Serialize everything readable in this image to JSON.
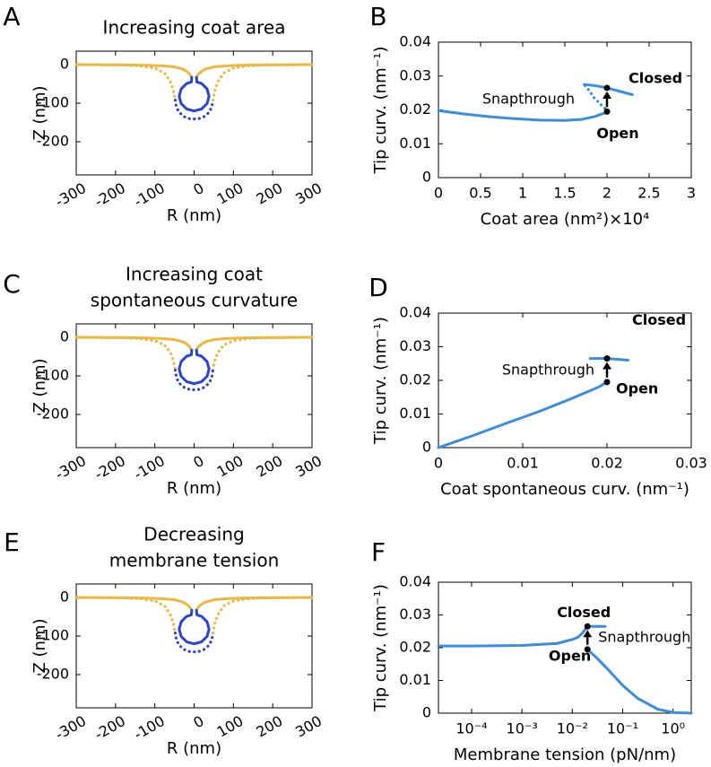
{
  "chart_data": [
    {
      "type": "shape",
      "panel": "A",
      "title": [
        "Increasing coat area"
      ],
      "xlabel": "R (nm)",
      "ylabel": "Z (nm)",
      "xlim": [
        -300,
        300
      ],
      "ylim": [
        -286,
        35
      ],
      "xticks": [
        -300,
        -200,
        -100,
        0,
        100,
        200,
        300
      ],
      "yticks": [
        0,
        -100,
        -200
      ],
      "series": [
        {
          "color": "#edb83d",
          "style": "dotted",
          "x": [
            -300,
            -200,
            -140,
            -100,
            -75,
            -60,
            -52,
            -48,
            null,
            48,
            52,
            60,
            75,
            100,
            140,
            200,
            300
          ],
          "values": [
            0,
            -1,
            -3,
            -9,
            -22,
            -45,
            -70,
            -92,
            null,
            -92,
            -70,
            -45,
            -22,
            -9,
            -3,
            -1,
            0
          ]
        },
        {
          "color": "#2b45d0",
          "style": "dotted",
          "x": [
            -48,
            -45,
            -38,
            -25,
            -12,
            0,
            12,
            25,
            38,
            45,
            48
          ],
          "values": [
            -92,
            -110,
            -124,
            -135,
            -140,
            -141,
            -140,
            -135,
            -124,
            -110,
            -92
          ]
        },
        {
          "color": "#edb83d",
          "style": "solid",
          "x": [
            -300,
            -200,
            -120,
            -80,
            -50,
            -30,
            -18,
            -10,
            -6,
            null,
            6,
            10,
            18,
            30,
            50,
            80,
            120,
            200,
            300
          ],
          "values": [
            0,
            -0.5,
            -1.5,
            -3,
            -6,
            -11,
            -18,
            -26,
            -33,
            null,
            -33,
            -26,
            -18,
            -11,
            -6,
            -3,
            -1.5,
            -0.5,
            0
          ]
        },
        {
          "color": "#2b45d0",
          "style": "solid",
          "x": [
            -6,
            -7,
            -19,
            -33,
            -38,
            -33,
            -19,
            0,
            19,
            33,
            38,
            33,
            19,
            7,
            6
          ],
          "values": [
            -33,
            -45,
            -49,
            -63,
            -82,
            -101,
            -115,
            -120,
            -115,
            -101,
            -82,
            -63,
            -49,
            -45,
            -33
          ]
        }
      ]
    },
    {
      "type": "line",
      "panel": "B",
      "xlabel": "Coat area (nm²)×10⁴",
      "ylabel": "Tip curv. (nm⁻¹)",
      "xlim": [
        0,
        3
      ],
      "ylim": [
        0,
        0.04
      ],
      "xticks": [
        0,
        0.5,
        1,
        1.5,
        2,
        2.5,
        3
      ],
      "yticks": [
        0,
        0.01,
        0.02,
        0.03,
        0.04
      ],
      "series": [
        {
          "color": "#3a8ee0",
          "style": "solid",
          "x": [
            0,
            0.3,
            0.6,
            0.9,
            1.2,
            1.5,
            1.7,
            1.85,
            2.02
          ],
          "values": [
            0.0198,
            0.0188,
            0.018,
            0.0174,
            0.017,
            0.0169,
            0.0172,
            0.018,
            0.0195
          ]
        },
        {
          "color": "#3a8ee0",
          "style": "dotted",
          "x": [
            2.02,
            1.95,
            1.85,
            1.78,
            1.73
          ],
          "values": [
            0.0195,
            0.021,
            0.0235,
            0.026,
            0.0275
          ]
        },
        {
          "color": "#3a8ee0",
          "style": "solid",
          "x": [
            1.73,
            1.85,
            2,
            2.15,
            2.3
          ],
          "values": [
            0.0275,
            0.0272,
            0.0265,
            0.0255,
            0.0245
          ]
        }
      ],
      "points": {
        "x": [
          2,
          2
        ],
        "values": [
          0.0265,
          0.0195
        ],
        "labels": [
          "Closed",
          "Open"
        ]
      },
      "annotation": "Snapthrough"
    },
    {
      "type": "shape",
      "panel": "C",
      "title": [
        "Increasing coat",
        "spontaneous curvature"
      ],
      "xlabel": "R (nm)",
      "ylabel": "Z (nm)",
      "xlim": [
        -300,
        300
      ],
      "ylim": [
        -286,
        35
      ],
      "xticks": [
        -300,
        -200,
        -100,
        0,
        100,
        200,
        300
      ],
      "yticks": [
        0,
        -100,
        -200
      ],
      "series": [
        {
          "color": "#edb83d",
          "style": "dotted",
          "x": [
            -300,
            -200,
            -140,
            -100,
            -75,
            -60,
            -52,
            -48,
            null,
            48,
            52,
            60,
            75,
            100,
            140,
            200,
            300
          ],
          "values": [
            0,
            -1,
            -3,
            -9,
            -20,
            -40,
            -62,
            -85,
            null,
            -85,
            -62,
            -40,
            -20,
            -9,
            -3,
            -1,
            0
          ]
        },
        {
          "color": "#2b45d0",
          "style": "dotted",
          "x": [
            -48,
            -45,
            -38,
            -25,
            -12,
            0,
            12,
            25,
            38,
            45,
            48
          ],
          "values": [
            -85,
            -104,
            -119,
            -130,
            -135,
            -136,
            -135,
            -130,
            -119,
            -104,
            -85
          ]
        },
        {
          "color": "#edb83d",
          "style": "solid",
          "x": [
            -300,
            -200,
            -120,
            -80,
            -50,
            -30,
            -18,
            -10,
            -6,
            null,
            6,
            10,
            18,
            30,
            50,
            80,
            120,
            200,
            300
          ],
          "values": [
            0,
            -0.5,
            -1.5,
            -3,
            -6,
            -11,
            -18,
            -26,
            -33,
            null,
            -33,
            -26,
            -18,
            -11,
            -6,
            -3,
            -1.5,
            -0.5,
            0
          ]
        },
        {
          "color": "#2b45d0",
          "style": "solid",
          "x": [
            -6,
            -7,
            -19,
            -33,
            -38,
            -33,
            -19,
            0,
            19,
            33,
            38,
            33,
            19,
            7,
            6
          ],
          "values": [
            -33,
            -45,
            -49,
            -63,
            -82,
            -101,
            -115,
            -120,
            -115,
            -101,
            -82,
            -63,
            -49,
            -45,
            -33
          ]
        }
      ]
    },
    {
      "type": "line",
      "panel": "D",
      "xlabel": "Coat spontaneous curv. (nm⁻¹)",
      "ylabel": "Tip curv. (nm⁻¹)",
      "xlim": [
        0,
        0.03
      ],
      "ylim": [
        0,
        0.04
      ],
      "xticks": [
        0,
        0.01,
        0.02,
        0.03
      ],
      "yticks": [
        0,
        0.01,
        0.02,
        0.03,
        0.04
      ],
      "series": [
        {
          "color": "#3a8ee0",
          "style": "solid",
          "x": [
            0,
            0.004,
            0.008,
            0.012,
            0.016,
            0.019,
            0.02
          ],
          "values": [
            0,
            0.0035,
            0.0072,
            0.0108,
            0.0148,
            0.018,
            0.0195
          ]
        },
        {
          "color": "#3a8ee0",
          "style": "solid",
          "x": [
            0.018,
            0.02,
            0.0225
          ],
          "values": [
            0.0265,
            0.0265,
            0.026
          ]
        }
      ],
      "points": {
        "x": [
          0.02,
          0.02
        ],
        "values": [
          0.0265,
          0.0195
        ],
        "labels": [
          "Closed",
          "Open"
        ]
      },
      "annotation": "Snapthrough"
    },
    {
      "type": "shape",
      "panel": "E",
      "title": [
        "Decreasing",
        "membrane tension"
      ],
      "xlabel": "R (nm)",
      "ylabel": "Z (nm)",
      "xlim": [
        -300,
        300
      ],
      "ylim": [
        -286,
        35
      ],
      "xticks": [
        -300,
        -200,
        -100,
        0,
        100,
        200,
        300
      ],
      "yticks": [
        0,
        -100,
        -200
      ],
      "series": [
        {
          "color": "#edb83d",
          "style": "dotted",
          "x": [
            -300,
            -200,
            -140,
            -100,
            -75,
            -60,
            -52,
            -48,
            null,
            48,
            52,
            60,
            75,
            100,
            140,
            200,
            300
          ],
          "values": [
            0,
            -1,
            -3,
            -9,
            -22,
            -45,
            -70,
            -92,
            null,
            -92,
            -70,
            -45,
            -22,
            -9,
            -3,
            -1,
            0
          ]
        },
        {
          "color": "#2b45d0",
          "style": "dotted",
          "x": [
            -48,
            -45,
            -38,
            -25,
            -12,
            0,
            12,
            25,
            38,
            45,
            48
          ],
          "values": [
            -92,
            -110,
            -124,
            -135,
            -140,
            -141,
            -140,
            -135,
            -124,
            -110,
            -92
          ]
        },
        {
          "color": "#edb83d",
          "style": "solid",
          "x": [
            -300,
            -200,
            -120,
            -80,
            -50,
            -30,
            -18,
            -10,
            -6,
            null,
            6,
            10,
            18,
            30,
            50,
            80,
            120,
            200,
            300
          ],
          "values": [
            0,
            -0.5,
            -1.5,
            -3,
            -6,
            -11,
            -18,
            -26,
            -33,
            null,
            -33,
            -26,
            -18,
            -11,
            -6,
            -3,
            -1.5,
            -0.5,
            0
          ]
        },
        {
          "color": "#2b45d0",
          "style": "solid",
          "x": [
            -6,
            -7,
            -19,
            -33,
            -38,
            -33,
            -19,
            0,
            19,
            33,
            38,
            33,
            19,
            7,
            6
          ],
          "values": [
            -33,
            -45,
            -49,
            -63,
            -82,
            -101,
            -115,
            -120,
            -115,
            -101,
            -82,
            -63,
            -49,
            -45,
            -33
          ]
        }
      ]
    },
    {
      "type": "line",
      "panel": "F",
      "xlabel": "Membrane tension (pN/nm)",
      "ylabel": "Tip curv. (nm⁻¹)",
      "xscale": "log",
      "xlim": [
        2.2e-05,
        2.3
      ],
      "ylim": [
        0,
        0.04
      ],
      "xticks": [
        {
          "value": 0.0001,
          "label": "10⁻⁴"
        },
        {
          "value": 0.001,
          "label": "10⁻³"
        },
        {
          "value": 0.01,
          "label": "10⁻²"
        },
        {
          "value": 0.1,
          "label": "10⁻¹"
        },
        {
          "value": 1,
          "label": "10⁰"
        }
      ],
      "yticks": [
        0,
        0.01,
        0.02,
        0.03,
        0.04
      ],
      "series": [
        {
          "color": "#3a8ee0",
          "style": "solid",
          "x": [
            2.2e-05,
            0.0001,
            0.001,
            0.005,
            0.01,
            0.013,
            0.016,
            0.02,
            0.03,
            0.045
          ],
          "values": [
            0.0205,
            0.0205,
            0.0207,
            0.0213,
            0.0225,
            0.0232,
            0.0245,
            0.0265,
            0.0265,
            0.0265
          ]
        },
        {
          "color": "#3a8ee0",
          "style": "solid",
          "x": [
            0.02,
            0.03,
            0.05,
            0.1,
            0.2,
            0.5,
            1,
            2.3
          ],
          "values": [
            0.0195,
            0.017,
            0.0135,
            0.0085,
            0.0045,
            0.0012,
            0.0002,
            0
          ]
        }
      ],
      "points": {
        "x": [
          0.02,
          0.02
        ],
        "values": [
          0.0265,
          0.0195
        ],
        "labels": [
          "Closed",
          "Open"
        ]
      },
      "annotation": "Snapthrough"
    }
  ]
}
